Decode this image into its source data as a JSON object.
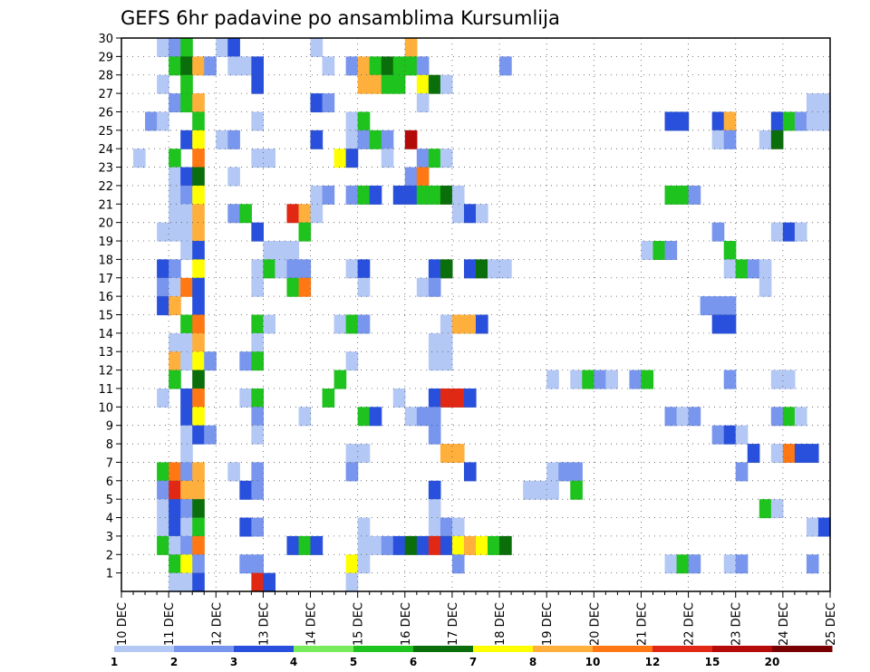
{
  "chart_data": {
    "type": "heatmap",
    "title": "GEFS 6hr padavine po ansamblima Kursumlija",
    "xlabel": "",
    "ylabel": "",
    "x_ticks": [
      "10 DEC",
      "11 DEC",
      "12 DEC",
      "13 DEC",
      "14 DEC",
      "15 DEC",
      "16 DEC",
      "17 DEC",
      "18 DEC",
      "19 DEC",
      "20 DEC",
      "21 DEC",
      "22 DEC",
      "23 DEC",
      "24 DEC",
      "25 DEC"
    ],
    "y_ticks": [
      "1",
      "2",
      "3",
      "4",
      "5",
      "6",
      "7",
      "8",
      "9",
      "10",
      "11",
      "12",
      "13",
      "14",
      "15",
      "16",
      "17",
      "18",
      "19",
      "20",
      "21",
      "22",
      "23",
      "24",
      "25",
      "26",
      "27",
      "28",
      "29",
      "30"
    ],
    "xlim": [
      0,
      60
    ],
    "ylim": [
      0,
      30
    ],
    "grid": true,
    "legend_position": "bottom",
    "legend_levels": [
      "1",
      "2",
      "3",
      "4",
      "5",
      "6",
      "7",
      "8",
      "10",
      "12",
      "15",
      "20"
    ],
    "colors": [
      "#b4c8f5",
      "#7896ee",
      "#2850dc",
      "#78eb5a",
      "#1ec31e",
      "#0a6e0a",
      "#ffff00",
      "#ffaf3c",
      "#ff7814",
      "#e12814",
      "#b40a0a",
      "#780000"
    ],
    "cells_note": "each cell: [member, 6h step index from 10 DEC 00Z, color class 0-11]",
    "cells": [
      [
        30,
        3,
        0
      ],
      [
        30,
        4,
        1
      ],
      [
        30,
        5,
        4
      ],
      [
        30,
        8,
        0
      ],
      [
        30,
        9,
        2
      ],
      [
        30,
        16,
        0
      ],
      [
        30,
        24,
        7
      ],
      [
        29,
        4,
        4
      ],
      [
        29,
        5,
        5
      ],
      [
        29,
        6,
        7
      ],
      [
        29,
        7,
        1
      ],
      [
        29,
        9,
        0
      ],
      [
        29,
        10,
        0
      ],
      [
        29,
        11,
        2
      ],
      [
        29,
        17,
        0
      ],
      [
        29,
        19,
        1
      ],
      [
        29,
        20,
        7
      ],
      [
        29,
        21,
        4
      ],
      [
        29,
        22,
        5
      ],
      [
        29,
        23,
        4
      ],
      [
        29,
        24,
        4
      ],
      [
        29,
        25,
        1
      ],
      [
        29,
        32,
        1
      ],
      [
        28,
        3,
        0
      ],
      [
        28,
        5,
        4
      ],
      [
        28,
        11,
        2
      ],
      [
        28,
        20,
        7
      ],
      [
        28,
        21,
        7
      ],
      [
        28,
        22,
        4
      ],
      [
        28,
        23,
        4
      ],
      [
        28,
        25,
        6
      ],
      [
        28,
        26,
        5
      ],
      [
        28,
        27,
        0
      ],
      [
        27,
        4,
        1
      ],
      [
        27,
        5,
        4
      ],
      [
        27,
        6,
        7
      ],
      [
        27,
        16,
        2
      ],
      [
        27,
        17,
        1
      ],
      [
        27,
        25,
        0
      ],
      [
        27,
        58,
        0
      ],
      [
        27,
        59,
        0
      ],
      [
        26,
        2,
        1
      ],
      [
        26,
        3,
        0
      ],
      [
        26,
        6,
        4
      ],
      [
        26,
        11,
        0
      ],
      [
        26,
        19,
        0
      ],
      [
        26,
        20,
        4
      ],
      [
        26,
        46,
        2
      ],
      [
        26,
        47,
        2
      ],
      [
        26,
        50,
        2
      ],
      [
        26,
        51,
        7
      ],
      [
        26,
        55,
        2
      ],
      [
        26,
        56,
        4
      ],
      [
        26,
        57,
        1
      ],
      [
        26,
        58,
        0
      ],
      [
        26,
        59,
        0
      ],
      [
        25,
        5,
        2
      ],
      [
        25,
        6,
        6
      ],
      [
        25,
        8,
        0
      ],
      [
        25,
        9,
        1
      ],
      [
        25,
        16,
        2
      ],
      [
        25,
        19,
        0
      ],
      [
        25,
        20,
        1
      ],
      [
        25,
        21,
        4
      ],
      [
        25,
        22,
        1
      ],
      [
        25,
        24,
        10
      ],
      [
        25,
        50,
        0
      ],
      [
        25,
        51,
        1
      ],
      [
        25,
        54,
        0
      ],
      [
        25,
        55,
        5
      ],
      [
        24,
        1,
        0
      ],
      [
        24,
        4,
        4
      ],
      [
        24,
        6,
        8
      ],
      [
        24,
        11,
        0
      ],
      [
        24,
        12,
        0
      ],
      [
        24,
        18,
        6
      ],
      [
        24,
        19,
        2
      ],
      [
        24,
        22,
        0
      ],
      [
        24,
        25,
        1
      ],
      [
        24,
        26,
        4
      ],
      [
        24,
        27,
        0
      ],
      [
        23,
        4,
        0
      ],
      [
        23,
        5,
        2
      ],
      [
        23,
        6,
        5
      ],
      [
        23,
        9,
        0
      ],
      [
        23,
        24,
        1
      ],
      [
        23,
        25,
        8
      ],
      [
        22,
        4,
        0
      ],
      [
        22,
        5,
        1
      ],
      [
        22,
        6,
        6
      ],
      [
        22,
        16,
        0
      ],
      [
        22,
        17,
        1
      ],
      [
        22,
        19,
        1
      ],
      [
        22,
        20,
        4
      ],
      [
        22,
        21,
        2
      ],
      [
        22,
        23,
        2
      ],
      [
        22,
        24,
        2
      ],
      [
        22,
        25,
        4
      ],
      [
        22,
        26,
        4
      ],
      [
        22,
        27,
        5
      ],
      [
        22,
        28,
        0
      ],
      [
        22,
        46,
        4
      ],
      [
        22,
        47,
        4
      ],
      [
        22,
        48,
        1
      ],
      [
        21,
        4,
        0
      ],
      [
        21,
        5,
        0
      ],
      [
        21,
        6,
        7
      ],
      [
        21,
        9,
        1
      ],
      [
        21,
        10,
        4
      ],
      [
        21,
        14,
        9
      ],
      [
        21,
        15,
        7
      ],
      [
        21,
        16,
        0
      ],
      [
        21,
        28,
        0
      ],
      [
        21,
        29,
        2
      ],
      [
        21,
        30,
        0
      ],
      [
        20,
        3,
        0
      ],
      [
        20,
        4,
        0
      ],
      [
        20,
        5,
        0
      ],
      [
        20,
        6,
        7
      ],
      [
        20,
        11,
        2
      ],
      [
        20,
        15,
        4
      ],
      [
        20,
        50,
        1
      ],
      [
        20,
        55,
        0
      ],
      [
        20,
        56,
        2
      ],
      [
        20,
        57,
        0
      ],
      [
        19,
        5,
        0
      ],
      [
        19,
        6,
        2
      ],
      [
        19,
        12,
        0
      ],
      [
        19,
        13,
        0
      ],
      [
        19,
        14,
        0
      ],
      [
        19,
        44,
        0
      ],
      [
        19,
        45,
        4
      ],
      [
        19,
        46,
        1
      ],
      [
        19,
        51,
        4
      ],
      [
        18,
        3,
        2
      ],
      [
        18,
        4,
        1
      ],
      [
        18,
        6,
        6
      ],
      [
        18,
        11,
        0
      ],
      [
        18,
        12,
        4
      ],
      [
        18,
        13,
        0
      ],
      [
        18,
        14,
        1
      ],
      [
        18,
        15,
        1
      ],
      [
        18,
        19,
        0
      ],
      [
        18,
        20,
        2
      ],
      [
        18,
        26,
        2
      ],
      [
        18,
        27,
        5
      ],
      [
        18,
        29,
        2
      ],
      [
        18,
        30,
        5
      ],
      [
        18,
        31,
        0
      ],
      [
        18,
        32,
        0
      ],
      [
        18,
        51,
        0
      ],
      [
        18,
        52,
        4
      ],
      [
        18,
        53,
        1
      ],
      [
        18,
        54,
        0
      ],
      [
        17,
        3,
        1
      ],
      [
        17,
        4,
        0
      ],
      [
        17,
        5,
        8
      ],
      [
        17,
        6,
        2
      ],
      [
        17,
        11,
        0
      ],
      [
        17,
        14,
        4
      ],
      [
        17,
        15,
        8
      ],
      [
        17,
        20,
        0
      ],
      [
        17,
        25,
        0
      ],
      [
        17,
        26,
        1
      ],
      [
        17,
        54,
        0
      ],
      [
        16,
        3,
        2
      ],
      [
        16,
        4,
        7
      ],
      [
        16,
        6,
        2
      ],
      [
        16,
        49,
        1
      ],
      [
        16,
        50,
        1
      ],
      [
        16,
        51,
        1
      ],
      [
        15,
        5,
        4
      ],
      [
        15,
        6,
        8
      ],
      [
        15,
        11,
        4
      ],
      [
        15,
        12,
        0
      ],
      [
        15,
        18,
        0
      ],
      [
        15,
        19,
        4
      ],
      [
        15,
        20,
        1
      ],
      [
        15,
        27,
        0
      ],
      [
        15,
        28,
        7
      ],
      [
        15,
        29,
        7
      ],
      [
        15,
        30,
        2
      ],
      [
        15,
        50,
        2
      ],
      [
        15,
        51,
        2
      ],
      [
        14,
        4,
        0
      ],
      [
        14,
        5,
        0
      ],
      [
        14,
        6,
        7
      ],
      [
        14,
        11,
        0
      ],
      [
        14,
        26,
        0
      ],
      [
        14,
        27,
        0
      ],
      [
        13,
        4,
        7
      ],
      [
        13,
        5,
        0
      ],
      [
        13,
        6,
        6
      ],
      [
        13,
        7,
        1
      ],
      [
        13,
        10,
        1
      ],
      [
        13,
        11,
        4
      ],
      [
        13,
        19,
        0
      ],
      [
        13,
        26,
        0
      ],
      [
        13,
        27,
        0
      ],
      [
        12,
        4,
        4
      ],
      [
        12,
        6,
        5
      ],
      [
        12,
        18,
        4
      ],
      [
        12,
        36,
        0
      ],
      [
        12,
        38,
        0
      ],
      [
        12,
        39,
        4
      ],
      [
        12,
        40,
        1
      ],
      [
        12,
        41,
        0
      ],
      [
        12,
        43,
        1
      ],
      [
        12,
        44,
        4
      ],
      [
        12,
        51,
        1
      ],
      [
        12,
        55,
        0
      ],
      [
        12,
        56,
        0
      ],
      [
        11,
        3,
        0
      ],
      [
        11,
        5,
        2
      ],
      [
        11,
        6,
        8
      ],
      [
        11,
        10,
        0
      ],
      [
        11,
        11,
        4
      ],
      [
        11,
        17,
        4
      ],
      [
        11,
        23,
        0
      ],
      [
        11,
        26,
        2
      ],
      [
        11,
        27,
        9
      ],
      [
        11,
        28,
        9
      ],
      [
        11,
        29,
        2
      ],
      [
        10,
        5,
        2
      ],
      [
        10,
        6,
        6
      ],
      [
        10,
        11,
        1
      ],
      [
        10,
        15,
        0
      ],
      [
        10,
        20,
        4
      ],
      [
        10,
        21,
        2
      ],
      [
        10,
        24,
        0
      ],
      [
        10,
        25,
        1
      ],
      [
        10,
        26,
        1
      ],
      [
        10,
        46,
        1
      ],
      [
        10,
        47,
        0
      ],
      [
        10,
        48,
        1
      ],
      [
        10,
        55,
        1
      ],
      [
        10,
        56,
        4
      ],
      [
        10,
        57,
        0
      ],
      [
        9,
        5,
        0
      ],
      [
        9,
        6,
        2
      ],
      [
        9,
        7,
        1
      ],
      [
        9,
        11,
        0
      ],
      [
        9,
        26,
        1
      ],
      [
        9,
        50,
        1
      ],
      [
        9,
        51,
        2
      ],
      [
        9,
        52,
        0
      ],
      [
        8,
        5,
        0
      ],
      [
        8,
        19,
        0
      ],
      [
        8,
        20,
        0
      ],
      [
        8,
        27,
        7
      ],
      [
        8,
        28,
        7
      ],
      [
        8,
        53,
        2
      ],
      [
        8,
        55,
        0
      ],
      [
        8,
        56,
        8
      ],
      [
        8,
        57,
        2
      ],
      [
        8,
        58,
        2
      ],
      [
        7,
        3,
        4
      ],
      [
        7,
        4,
        8
      ],
      [
        7,
        5,
        1
      ],
      [
        7,
        6,
        7
      ],
      [
        7,
        9,
        0
      ],
      [
        7,
        11,
        1
      ],
      [
        7,
        19,
        1
      ],
      [
        7,
        29,
        2
      ],
      [
        7,
        36,
        0
      ],
      [
        7,
        37,
        1
      ],
      [
        7,
        38,
        1
      ],
      [
        7,
        52,
        1
      ],
      [
        6,
        3,
        1
      ],
      [
        6,
        4,
        9
      ],
      [
        6,
        5,
        7
      ],
      [
        6,
        6,
        7
      ],
      [
        6,
        10,
        2
      ],
      [
        6,
        11,
        1
      ],
      [
        6,
        26,
        2
      ],
      [
        6,
        34,
        0
      ],
      [
        6,
        35,
        0
      ],
      [
        6,
        36,
        0
      ],
      [
        6,
        38,
        4
      ],
      [
        5,
        3,
        0
      ],
      [
        5,
        4,
        2
      ],
      [
        5,
        5,
        1
      ],
      [
        5,
        6,
        5
      ],
      [
        5,
        26,
        0
      ],
      [
        5,
        54,
        4
      ],
      [
        5,
        55,
        0
      ],
      [
        4,
        3,
        0
      ],
      [
        4,
        4,
        2
      ],
      [
        4,
        5,
        0
      ],
      [
        4,
        6,
        4
      ],
      [
        4,
        10,
        2
      ],
      [
        4,
        11,
        1
      ],
      [
        4,
        20,
        0
      ],
      [
        4,
        26,
        0
      ],
      [
        4,
        27,
        1
      ],
      [
        4,
        28,
        0
      ],
      [
        4,
        58,
        0
      ],
      [
        4,
        59,
        2
      ],
      [
        3,
        3,
        4
      ],
      [
        3,
        4,
        0
      ],
      [
        3,
        5,
        1
      ],
      [
        3,
        6,
        8
      ],
      [
        3,
        14,
        2
      ],
      [
        3,
        15,
        4
      ],
      [
        3,
        16,
        2
      ],
      [
        3,
        20,
        0
      ],
      [
        3,
        21,
        0
      ],
      [
        3,
        22,
        1
      ],
      [
        3,
        23,
        2
      ],
      [
        3,
        24,
        5
      ],
      [
        3,
        25,
        2
      ],
      [
        3,
        26,
        9
      ],
      [
        3,
        27,
        2
      ],
      [
        3,
        28,
        6
      ],
      [
        3,
        29,
        7
      ],
      [
        3,
        30,
        6
      ],
      [
        3,
        31,
        4
      ],
      [
        3,
        32,
        5
      ],
      [
        2,
        4,
        4
      ],
      [
        2,
        5,
        6
      ],
      [
        2,
        6,
        1
      ],
      [
        2,
        10,
        1
      ],
      [
        2,
        11,
        1
      ],
      [
        2,
        19,
        6
      ],
      [
        2,
        20,
        0
      ],
      [
        2,
        28,
        1
      ],
      [
        2,
        46,
        0
      ],
      [
        2,
        47,
        4
      ],
      [
        2,
        48,
        1
      ],
      [
        2,
        51,
        0
      ],
      [
        2,
        52,
        1
      ],
      [
        2,
        58,
        1
      ],
      [
        1,
        4,
        0
      ],
      [
        1,
        5,
        0
      ],
      [
        1,
        6,
        2
      ],
      [
        1,
        11,
        9
      ],
      [
        1,
        12,
        2
      ],
      [
        1,
        19,
        0
      ]
    ]
  }
}
